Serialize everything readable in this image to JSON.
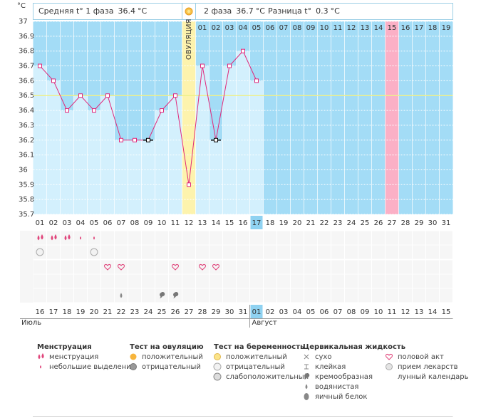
{
  "chart_data": {
    "type": "line",
    "unit": "°C",
    "ylim": [
      35.7,
      37
    ],
    "yticks": [
      35.7,
      35.8,
      35.9,
      36,
      36.1,
      36.2,
      36.3,
      36.4,
      36.5,
      36.6,
      36.7,
      36.8,
      36.9,
      37
    ],
    "grid": true,
    "categories": [
      "01",
      "02",
      "03",
      "04",
      "05",
      "06",
      "07",
      "08",
      "09",
      "10",
      "11",
      "12",
      "13",
      "14",
      "15",
      "16",
      "17",
      "18",
      "19",
      "20",
      "21",
      "22",
      "23",
      "24",
      "25",
      "26",
      "27",
      "28",
      "29",
      "30",
      "31"
    ],
    "values": [
      36.7,
      36.6,
      36.4,
      36.5,
      36.4,
      36.5,
      36.2,
      36.2,
      36.2,
      36.4,
      36.5,
      35.9,
      36.7,
      36.2,
      36.7,
      36.8,
      36.6,
      null,
      null,
      null,
      null,
      null,
      null,
      null,
      null,
      null,
      null,
      null,
      null,
      null,
      null
    ],
    "excluded_days": [
      "09",
      "14"
    ],
    "line_color": "#e0287a",
    "bar_color": "#d3f0fd",
    "background_color": "#a3dcf6",
    "coverline": 36.5,
    "coverline_color": "#eef08a",
    "phase1": {
      "label": "Средняя t° 1 фаза",
      "value": 36.4
    },
    "phase2": {
      "label": "2 фаза",
      "value": 36.7
    },
    "difference": {
      "label": "Разница t°",
      "value": 0.3
    },
    "ovulation": {
      "day": "12",
      "label": "ОВУЛЯЦИЯ",
      "color": "#fdf3ad"
    },
    "phase2_days": [
      "01",
      "02",
      "03",
      "04",
      "05",
      "06",
      "07",
      "08",
      "09",
      "10",
      "11",
      "12",
      "13",
      "14",
      "15",
      "16",
      "17",
      "18",
      "19"
    ],
    "expected_period": {
      "day": "27",
      "color": "#fbb0c6"
    },
    "today": "17",
    "dates": [
      "16",
      "17",
      "18",
      "19",
      "20",
      "21",
      "22",
      "23",
      "24",
      "25",
      "26",
      "27",
      "28",
      "29",
      "30",
      "31",
      "01",
      "02",
      "03",
      "04",
      "05",
      "06",
      "07",
      "08",
      "09",
      "10",
      "11",
      "12",
      "13",
      "14",
      "15"
    ],
    "red_dates": [
      "21",
      "22",
      "28",
      "29",
      "04",
      "05",
      "11",
      "12"
    ],
    "today_date": "01",
    "months": [
      {
        "label": "Июль",
        "date": "16"
      },
      {
        "label": "Август",
        "date": "01"
      }
    ]
  },
  "legend": [
    {
      "title": "Менструация",
      "items": [
        {
          "label": "менструация",
          "days": [
            "01",
            "02",
            "03"
          ]
        },
        {
          "label": "небольшие выделения",
          "days": [
            "04",
            "05"
          ]
        }
      ]
    },
    {
      "title": "Тест на овуляцию",
      "items": [
        {
          "label": "положительный",
          "days": []
        },
        {
          "label": "отрицательный",
          "days": []
        }
      ]
    },
    {
      "title": "Тест на беременность",
      "items": [
        {
          "label": "положительный",
          "days": []
        },
        {
          "label": "отрицательный",
          "days": [
            "01",
            "05"
          ]
        },
        {
          "label": "слабоположительный",
          "days": []
        }
      ]
    },
    {
      "title": "Цервикальная жидкость",
      "items": [
        {
          "label": "сухо",
          "days": []
        },
        {
          "label": "клейкая",
          "days": []
        },
        {
          "label": "кремообразная",
          "days": [
            "10",
            "11"
          ]
        },
        {
          "label": "водянистая",
          "days": [
            "07"
          ]
        },
        {
          "label": "яичный белок",
          "days": []
        }
      ]
    },
    {
      "items": [
        {
          "label": "половой акт",
          "days": [
            "06",
            "07",
            "11",
            "13",
            "14"
          ]
        },
        {
          "label": "прием лекарств",
          "days": []
        },
        {
          "label": "лунный календарь",
          "days": []
        }
      ]
    }
  ]
}
